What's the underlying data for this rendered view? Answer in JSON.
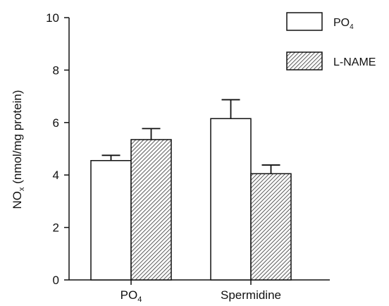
{
  "chart_data": {
    "type": "bar",
    "categories": [
      {
        "main": "PO",
        "sub": "4"
      },
      {
        "main": "Spermidine",
        "sub": ""
      }
    ],
    "series": [
      {
        "name": "PO",
        "name_sub": "4",
        "fill": "white",
        "values": [
          4.55,
          6.15
        ],
        "errors": [
          0.2,
          0.72
        ]
      },
      {
        "name": "L-NAME",
        "name_sub": "",
        "fill": "hatch",
        "values": [
          5.35,
          4.05
        ],
        "errors": [
          0.42,
          0.33
        ]
      }
    ],
    "ylabel": {
      "main": "NO",
      "sub": "x",
      "rest": " (nmol/mg protein)"
    },
    "ylim": [
      0,
      10
    ],
    "yticks": [
      "0",
      "2",
      "4",
      "6",
      "8",
      "10"
    ],
    "legend_position": "top-right",
    "grid": false
  }
}
